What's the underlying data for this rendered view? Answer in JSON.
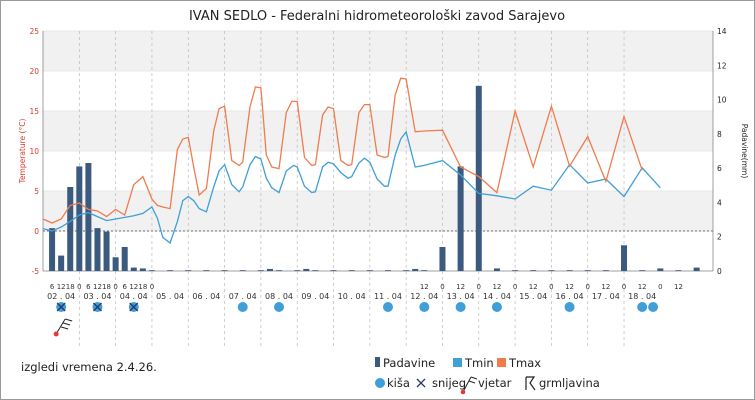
{
  "chart_data": {
    "type": "combo",
    "title": "IVAN SEDLO - Federalni hidrometeorološki zavod Sarajevo",
    "y_left": {
      "label": "Temperature (°C)",
      "ylim": [
        -5,
        25
      ],
      "ticks": [
        -5,
        0,
        5,
        10,
        15,
        20,
        25
      ],
      "color": "#d83a2a"
    },
    "y_right": {
      "label": "Padavine(mm)",
      "ylim": [
        0,
        14
      ],
      "ticks": [
        0,
        2,
        4,
        6,
        8,
        10,
        12,
        14
      ],
      "color": "#222222"
    },
    "x_days": [
      "02 . 04",
      "03 . 04",
      "04 . 04",
      "05 . 04",
      "06 . 04",
      "07 . 04",
      "08 . 04",
      "09 . 04",
      "10 . 04",
      "11 . 04",
      "12 . 04",
      "13 . 04",
      "14 . 04",
      "15 . 04",
      "16 . 04",
      "17 . 04",
      "18 . 04"
    ],
    "x_hour_groups": [
      {
        "day": 0,
        "hours": [
          "6",
          "12",
          "18"
        ]
      },
      {
        "day": 1,
        "hours": [
          "0",
          "6",
          "12",
          "18"
        ]
      },
      {
        "day": 2,
        "hours": [
          "0",
          "6",
          "12",
          "18"
        ]
      },
      {
        "day": 3,
        "hours": [
          "0"
        ]
      },
      {
        "day": 10,
        "hours": [
          "12"
        ]
      },
      {
        "day": 11,
        "hours": [
          "0",
          "12"
        ]
      },
      {
        "day": 12,
        "hours": [
          "0",
          "12"
        ]
      },
      {
        "day": 13,
        "hours": [
          "0",
          "12"
        ]
      },
      {
        "day": 14,
        "hours": [
          "0",
          "12"
        ]
      },
      {
        "day": 15,
        "hours": [
          "0",
          "12"
        ]
      },
      {
        "day": 16,
        "hours": [
          "0",
          "12"
        ]
      },
      {
        "day": 17,
        "hours": [
          "0",
          "12"
        ]
      }
    ],
    "series": [
      {
        "name": "Padavine",
        "type": "bar",
        "axis": "right",
        "color": "#3b5a7f",
        "values": [
          [
            0.25,
            2.5
          ],
          [
            0.5,
            0.9
          ],
          [
            0.75,
            4.9
          ],
          [
            1.0,
            6.1
          ],
          [
            1.25,
            6.3
          ],
          [
            1.5,
            2.5
          ],
          [
            1.75,
            2.3
          ],
          [
            2.0,
            0.8
          ],
          [
            2.25,
            1.4
          ],
          [
            2.5,
            0.2
          ],
          [
            2.75,
            0.15
          ],
          [
            3,
            0.02
          ],
          [
            3.5,
            0.02
          ],
          [
            4,
            0.02
          ],
          [
            4.5,
            0.02
          ],
          [
            5,
            0.02
          ],
          [
            5.5,
            0.02
          ],
          [
            6,
            0.02
          ],
          [
            6.25,
            0.12
          ],
          [
            6.5,
            0.02
          ],
          [
            7,
            0.02
          ],
          [
            7.25,
            0.12
          ],
          [
            7.5,
            0.02
          ],
          [
            8,
            0.02
          ],
          [
            8.5,
            0.02
          ],
          [
            9,
            0.02
          ],
          [
            9.5,
            0.02
          ],
          [
            10,
            0.02
          ],
          [
            10.25,
            0.12
          ],
          [
            10.5,
            0.02
          ],
          [
            11,
            1.4
          ],
          [
            11.5,
            6.1
          ],
          [
            12,
            10.8
          ],
          [
            12.5,
            0.15
          ],
          [
            13,
            0.02
          ],
          [
            13.5,
            0.02
          ],
          [
            14,
            0.02
          ],
          [
            14.5,
            0.02
          ],
          [
            15,
            0.02
          ],
          [
            15.5,
            0.02
          ],
          [
            16,
            1.5
          ],
          [
            16.5,
            0.02
          ],
          [
            17,
            0.15
          ],
          [
            17.5,
            0.02
          ],
          [
            18,
            0.2
          ]
        ]
      },
      {
        "name": "Tmin",
        "type": "line",
        "axis": "left",
        "color": "#3f9fd6",
        "points": [
          [
            0,
            0.3
          ],
          [
            0.25,
            0
          ],
          [
            0.5,
            0.5
          ],
          [
            0.75,
            1.2
          ],
          [
            1.0,
            2.0
          ],
          [
            1.25,
            2.3
          ],
          [
            1.5,
            1.8
          ],
          [
            1.75,
            1.3
          ],
          [
            2.0,
            1.5
          ],
          [
            2.25,
            1.7
          ],
          [
            2.5,
            1.9
          ],
          [
            2.75,
            2.2
          ],
          [
            3.0,
            3.0
          ],
          [
            3.15,
            1.6
          ],
          [
            3.3,
            -0.8
          ],
          [
            3.5,
            -1.5
          ],
          [
            3.7,
            1.2
          ],
          [
            3.85,
            3.8
          ],
          [
            4.0,
            4.3
          ],
          [
            4.15,
            3.8
          ],
          [
            4.3,
            2.8
          ],
          [
            4.5,
            2.4
          ],
          [
            4.7,
            5.5
          ],
          [
            4.85,
            7.5
          ],
          [
            5.0,
            8.3
          ],
          [
            5.2,
            5.8
          ],
          [
            5.4,
            4.9
          ],
          [
            5.5,
            5.5
          ],
          [
            5.7,
            8.3
          ],
          [
            5.85,
            9.3
          ],
          [
            6.0,
            9.0
          ],
          [
            6.15,
            6.6
          ],
          [
            6.3,
            5.4
          ],
          [
            6.5,
            4.8
          ],
          [
            6.7,
            7.5
          ],
          [
            6.9,
            8.2
          ],
          [
            7.0,
            8.0
          ],
          [
            7.2,
            5.6
          ],
          [
            7.4,
            4.8
          ],
          [
            7.5,
            4.9
          ],
          [
            7.7,
            8.0
          ],
          [
            7.85,
            8.6
          ],
          [
            8.0,
            8.4
          ],
          [
            8.2,
            7.3
          ],
          [
            8.4,
            6.6
          ],
          [
            8.5,
            6.8
          ],
          [
            8.7,
            8.5
          ],
          [
            8.85,
            9.1
          ],
          [
            9.0,
            8.6
          ],
          [
            9.2,
            6.5
          ],
          [
            9.4,
            5.6
          ],
          [
            9.5,
            5.6
          ],
          [
            9.7,
            9.5
          ],
          [
            9.85,
            11.5
          ],
          [
            10.0,
            12.4
          ],
          [
            10.25,
            8.0
          ],
          [
            10.5,
            8.2
          ],
          [
            11.0,
            8.8
          ],
          [
            11.5,
            7.0
          ],
          [
            12.0,
            4.7
          ],
          [
            12.5,
            4.4
          ],
          [
            13.0,
            4.0
          ],
          [
            13.5,
            5.6
          ],
          [
            14.0,
            5.1
          ],
          [
            14.5,
            8.3
          ],
          [
            15.0,
            6.0
          ],
          [
            15.5,
            6.5
          ],
          [
            16.0,
            4.3
          ],
          [
            16.5,
            7.9
          ],
          [
            17.0,
            5.4
          ]
        ]
      },
      {
        "name": "Tmax",
        "type": "line",
        "axis": "left",
        "color": "#f07c4e",
        "points": [
          [
            0,
            1.5
          ],
          [
            0.25,
            1.0
          ],
          [
            0.5,
            1.5
          ],
          [
            0.75,
            3.2
          ],
          [
            1.0,
            3.5
          ],
          [
            1.25,
            2.7
          ],
          [
            1.5,
            2.5
          ],
          [
            1.75,
            1.8
          ],
          [
            2.0,
            2.7
          ],
          [
            2.25,
            2.0
          ],
          [
            2.5,
            5.8
          ],
          [
            2.75,
            6.8
          ],
          [
            3.0,
            4.0
          ],
          [
            3.15,
            3.2
          ],
          [
            3.3,
            3.0
          ],
          [
            3.5,
            2.8
          ],
          [
            3.7,
            10.2
          ],
          [
            3.85,
            11.5
          ],
          [
            4.0,
            11.7
          ],
          [
            4.15,
            8.0
          ],
          [
            4.3,
            4.5
          ],
          [
            4.5,
            5.3
          ],
          [
            4.7,
            12.5
          ],
          [
            4.85,
            15.3
          ],
          [
            5.0,
            15.6
          ],
          [
            5.2,
            8.8
          ],
          [
            5.4,
            8.2
          ],
          [
            5.5,
            8.6
          ],
          [
            5.7,
            15.5
          ],
          [
            5.85,
            18.0
          ],
          [
            6.0,
            17.9
          ],
          [
            6.15,
            9.5
          ],
          [
            6.3,
            8.0
          ],
          [
            6.5,
            7.8
          ],
          [
            6.7,
            14.8
          ],
          [
            6.85,
            16.2
          ],
          [
            7.0,
            16.2
          ],
          [
            7.2,
            9.2
          ],
          [
            7.4,
            8.2
          ],
          [
            7.5,
            8.3
          ],
          [
            7.7,
            14.5
          ],
          [
            7.85,
            15.5
          ],
          [
            8.0,
            15.3
          ],
          [
            8.2,
            8.8
          ],
          [
            8.4,
            8.2
          ],
          [
            8.5,
            8.3
          ],
          [
            8.7,
            14.8
          ],
          [
            8.85,
            15.8
          ],
          [
            9.0,
            15.8
          ],
          [
            9.2,
            9.5
          ],
          [
            9.4,
            9.2
          ],
          [
            9.5,
            9.3
          ],
          [
            9.7,
            17.0
          ],
          [
            9.85,
            19.1
          ],
          [
            10.0,
            19.0
          ],
          [
            10.25,
            12.4
          ],
          [
            10.5,
            12.5
          ],
          [
            11.0,
            12.6
          ],
          [
            11.5,
            8.0
          ],
          [
            12.0,
            6.8
          ],
          [
            12.5,
            4.8
          ],
          [
            13.0,
            15.0
          ],
          [
            13.5,
            8.0
          ],
          [
            14.0,
            15.6
          ],
          [
            14.5,
            8.1
          ],
          [
            15.0,
            11.8
          ],
          [
            15.5,
            6.2
          ],
          [
            16.0,
            14.3
          ],
          [
            16.5,
            7.6
          ]
        ]
      }
    ],
    "weather_rows": {
      "snow_rain": [
        0,
        1,
        2
      ],
      "rain": [
        5,
        6,
        9,
        10,
        11,
        12,
        14,
        16,
        16.3
      ],
      "wind": [
        0
      ]
    },
    "footer_note": "izgledi vremena 2.4.26.",
    "legend": [
      {
        "label": "Padavine",
        "color": "#3b5a7f",
        "symbol": "bar"
      },
      {
        "label": "Tmin",
        "color": "#3f9fd6",
        "symbol": "square"
      },
      {
        "label": "Tmax",
        "color": "#f07c4e",
        "symbol": "square"
      }
    ],
    "legend_symbols": [
      {
        "label": "kiša",
        "icon": "rain-dot-icon"
      },
      {
        "label": "snijeg",
        "icon": "snow-cross-icon"
      },
      {
        "label": "vjetar",
        "icon": "wind-flag-icon"
      },
      {
        "label": "grmljavina",
        "icon": "thunder-icon"
      }
    ]
  }
}
